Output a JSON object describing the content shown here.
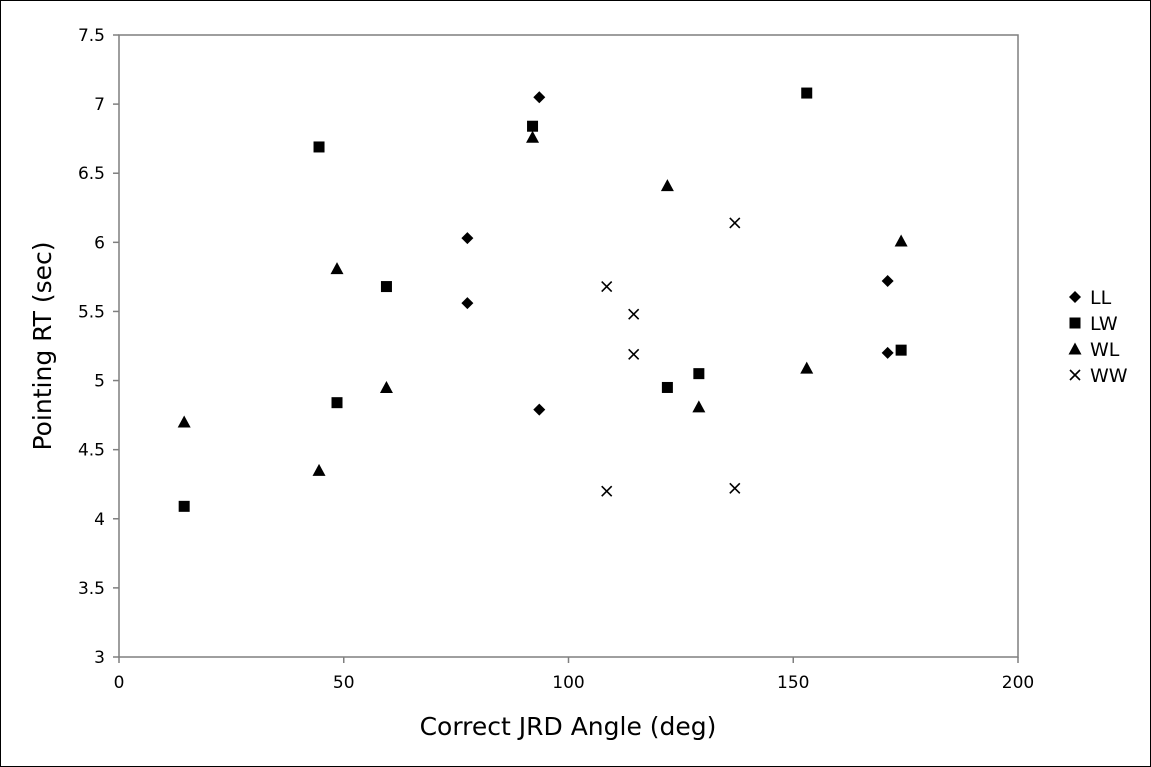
{
  "chart_data": {
    "type": "scatter",
    "title": "",
    "xlabel": "Correct JRD Angle (deg)",
    "ylabel": "Pointing RT (sec)",
    "xlim": [
      0,
      200
    ],
    "ylim": [
      3,
      7.5
    ],
    "x_ticks": [
      "0",
      "50",
      "100",
      "150",
      "200"
    ],
    "y_ticks": [
      "3",
      "3.5",
      "4",
      "4.5",
      "5",
      "5.5",
      "6",
      "6.5",
      "7",
      "7.5"
    ],
    "grid": false,
    "legend_position": "right",
    "series": [
      {
        "name": "LL",
        "marker": "diamond",
        "points": [
          [
            77.5,
            6.03
          ],
          [
            77.5,
            5.56
          ],
          [
            93.5,
            7.05
          ],
          [
            93.5,
            4.79
          ],
          [
            171,
            5.72
          ],
          [
            171,
            5.2
          ]
        ]
      },
      {
        "name": "LW",
        "marker": "square",
        "points": [
          [
            14.5,
            4.09
          ],
          [
            44.5,
            6.69
          ],
          [
            48.5,
            4.84
          ],
          [
            59.5,
            5.68
          ],
          [
            92,
            6.84
          ],
          [
            122,
            4.95
          ],
          [
            129,
            5.05
          ],
          [
            153,
            7.08
          ],
          [
            174,
            5.22
          ]
        ]
      },
      {
        "name": "WL",
        "marker": "triangle",
        "points": [
          [
            14.5,
            4.7
          ],
          [
            44.5,
            4.35
          ],
          [
            48.5,
            5.81
          ],
          [
            59.5,
            4.95
          ],
          [
            92,
            6.76
          ],
          [
            122,
            6.41
          ],
          [
            129,
            4.81
          ],
          [
            153,
            5.09
          ],
          [
            174,
            6.01
          ]
        ]
      },
      {
        "name": "WW",
        "marker": "x",
        "points": [
          [
            108.5,
            5.68
          ],
          [
            108.5,
            4.2
          ],
          [
            114.5,
            5.48
          ],
          [
            114.5,
            5.19
          ],
          [
            137,
            6.14
          ],
          [
            137,
            4.22
          ]
        ]
      }
    ]
  }
}
